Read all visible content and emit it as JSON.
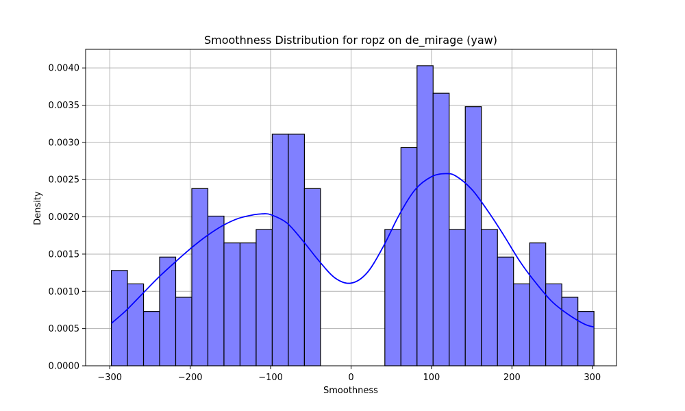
{
  "chart_data": {
    "type": "bar",
    "title": "Smoothness Distribution for ropz on de_mirage (yaw)",
    "xlabel": "Smoothness",
    "ylabel": "Density",
    "xlim": [
      -330,
      330
    ],
    "ylim": [
      0,
      0.00425
    ],
    "grid": true,
    "x_ticks": [
      -300,
      -200,
      -100,
      0,
      100,
      200,
      300
    ],
    "x_tick_labels": [
      "−300",
      "−200",
      "−100",
      "0",
      "100",
      "200",
      "300"
    ],
    "y_ticks": [
      0,
      0.0005,
      0.001,
      0.0015,
      0.002,
      0.0025,
      0.003,
      0.0035,
      0.004
    ],
    "y_tick_labels": [
      "0.0000",
      "0.0005",
      "0.0010",
      "0.0015",
      "0.0020",
      "0.0025",
      "0.0030",
      "0.0035",
      "0.0040"
    ],
    "bin_edges": [
      -298,
      -278,
      -258,
      -238,
      -218,
      -198,
      -178,
      -158,
      -138,
      -118,
      -98,
      -78,
      -58,
      -38,
      -18,
      2,
      22,
      42,
      62,
      82,
      102,
      122,
      142,
      162,
      182,
      202,
      222,
      242,
      262,
      282,
      302
    ],
    "values": [
      0.00128,
      0.0011,
      0.00073,
      0.00146,
      0.00092,
      0.00238,
      0.00201,
      0.00165,
      0.00165,
      0.00183,
      0.00311,
      0.00311,
      0.00238,
      0,
      0,
      0,
      0,
      0.00183,
      0.00293,
      0.00403,
      0.00366,
      0.00183,
      0.00348,
      0.00183,
      0.00146,
      0.0011,
      0.00165,
      0.0011,
      0.00092,
      0.00073
    ],
    "kde": {
      "x": [
        -298,
        -280,
        -260,
        -240,
        -220,
        -200,
        -180,
        -160,
        -140,
        -120,
        -110,
        -100,
        -80,
        -60,
        -40,
        -20,
        0,
        20,
        40,
        60,
        80,
        100,
        117,
        130,
        150,
        170,
        190,
        210,
        230,
        250,
        270,
        290,
        302
      ],
      "y": [
        0.00057,
        0.00074,
        0.00096,
        0.00118,
        0.00138,
        0.00157,
        0.00174,
        0.00188,
        0.00198,
        0.00203,
        0.00204,
        0.00203,
        0.00192,
        0.00168,
        0.00141,
        0.00118,
        0.00111,
        0.00125,
        0.0016,
        0.00203,
        0.00237,
        0.00254,
        0.00258,
        0.00255,
        0.00237,
        0.00208,
        0.00175,
        0.0014,
        0.00111,
        0.00086,
        0.00069,
        0.00056,
        0.00052
      ]
    },
    "colors": {
      "bar_fill": "#8080ff",
      "bar_edge": "#000000",
      "kde_line": "#0000ff",
      "grid": "#b0b0b0"
    }
  }
}
